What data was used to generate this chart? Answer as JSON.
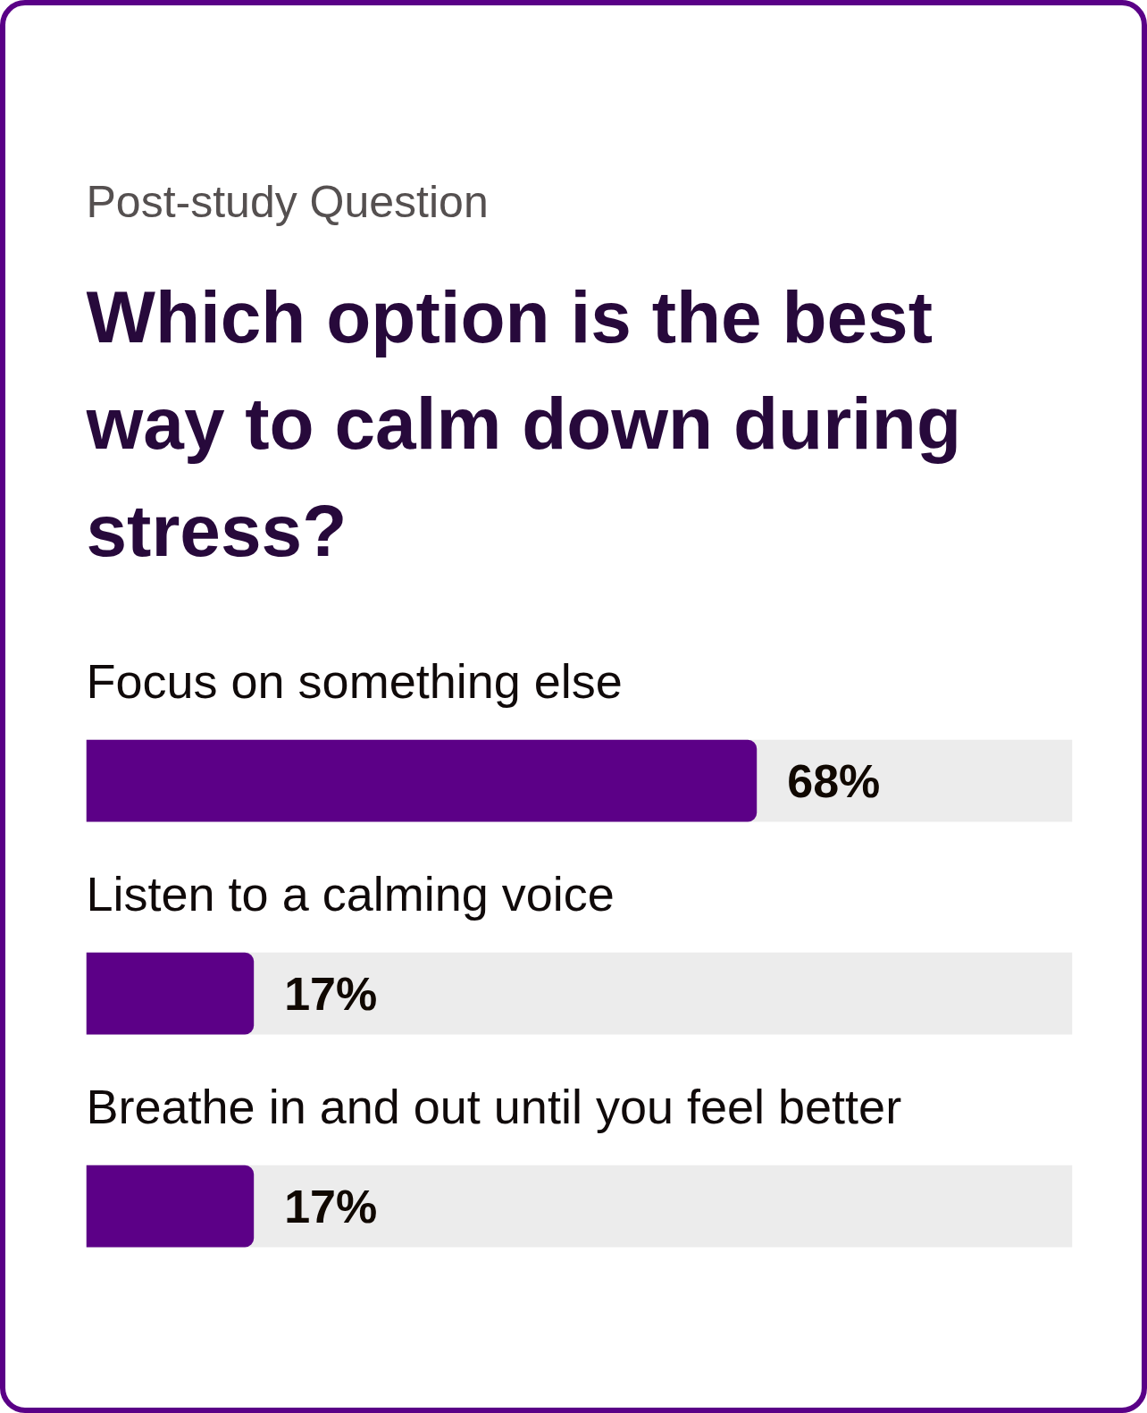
{
  "chart_data": {
    "type": "bar",
    "orientation": "horizontal",
    "subtitle": "Post-study Question",
    "title": "Which option is the best way to calm down during stress?",
    "categories": [
      "Focus on something else",
      "Listen to a calming voice",
      "Breathe in and out until you feel better"
    ],
    "values": [
      68,
      17,
      17
    ],
    "color": "#5c0087",
    "value_labels": [
      "68%",
      "17%",
      "17%"
    ],
    "xlim": [
      0,
      100
    ],
    "tick_labels": false
  }
}
